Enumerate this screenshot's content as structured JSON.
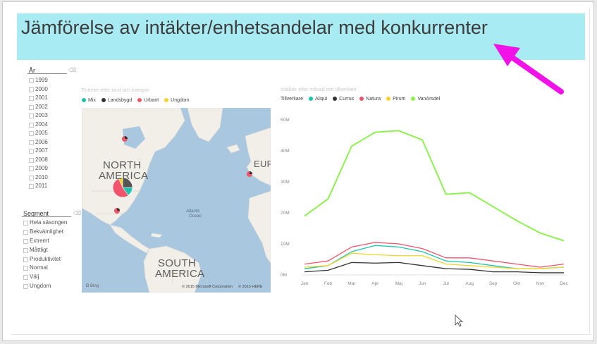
{
  "title": "Jämförelse av intäkter/enhetsandelar med konkurrenter",
  "year_slicer": {
    "title": "År",
    "items": [
      "1999",
      "2000",
      "2001",
      "2002",
      "2003",
      "2004",
      "2005",
      "2006",
      "2007",
      "2008",
      "2009",
      "2010",
      "2011"
    ]
  },
  "segment_slicer": {
    "title": "Segment",
    "items": [
      "Hela säsongen",
      "Bekvämlighet",
      "Extremt",
      "Måttligt",
      "Produktivitet",
      "Normal",
      "Välj",
      "Ungdom"
    ]
  },
  "map_visual": {
    "title": "Enheter efter land och kategori",
    "legend": [
      {
        "label": "Mix",
        "color": "#1fc4b0"
      },
      {
        "label": "Landsbygd",
        "color": "#333333"
      },
      {
        "label": "Urbant",
        "color": "#f0556b"
      },
      {
        "label": "Ungdom",
        "color": "#f2d42b"
      }
    ],
    "labels": {
      "north_america_1": "NORTH",
      "north_america_2": "AMERICA",
      "south_america_1": "SOUTH",
      "south_america_2": "AMERICA",
      "europe": "EUR",
      "atlantic_1": "Atlantic",
      "atlantic_2": "Ocean"
    },
    "copyright_1": "© 2015 Microsoft Corporation",
    "copyright_2": "© 2015 HERE",
    "bing": "Bing"
  },
  "line_visual": {
    "title": "Intäkter efter månad och tillverkare",
    "legend_title": "Tillverkare"
  },
  "chart_data": {
    "type": "line",
    "title": "Intäkter efter månad och tillverkare",
    "legend_title": "Tillverkare",
    "categories": [
      "Jan",
      "Feb",
      "Mar",
      "Apr",
      "Maj",
      "Jun",
      "Jul",
      "Aug",
      "Sep",
      "Okt",
      "Nov",
      "Dec"
    ],
    "y_ticks": [
      "0M",
      "10M",
      "20M",
      "30M",
      "40M",
      "50M"
    ],
    "ylim": [
      0,
      50000000
    ],
    "grid": false,
    "legend_position": "top-left",
    "series": [
      {
        "name": "Aliqui",
        "color": "#1fc4b0",
        "values": [
          2000000,
          3000000,
          7500000,
          9500000,
          9000000,
          7500000,
          4500000,
          4000000,
          3000000,
          2000000,
          2000000,
          2500000
        ]
      },
      {
        "name": "Currus",
        "color": "#333333",
        "values": [
          1000000,
          1500000,
          4000000,
          3800000,
          4000000,
          3000000,
          2000000,
          1800000,
          1000000,
          1000000,
          700000,
          700000
        ]
      },
      {
        "name": "Natura",
        "color": "#f0556b",
        "values": [
          3500000,
          4500000,
          9000000,
          10500000,
          10000000,
          8500000,
          5500000,
          5500000,
          4500000,
          3500000,
          2500000,
          3500000
        ]
      },
      {
        "name": "Pirum",
        "color": "#f2d42b",
        "values": [
          2500000,
          3000000,
          7000000,
          6500000,
          6200000,
          6200000,
          3500000,
          3000000,
          2500000,
          2000000,
          2000000,
          2500000
        ]
      },
      {
        "name": "VanArsdel",
        "color": "#8ff052",
        "values": [
          19000000,
          24500000,
          41500000,
          46000000,
          46500000,
          43500000,
          26000000,
          26500000,
          22000000,
          17500000,
          13500000,
          11000000
        ]
      }
    ]
  }
}
